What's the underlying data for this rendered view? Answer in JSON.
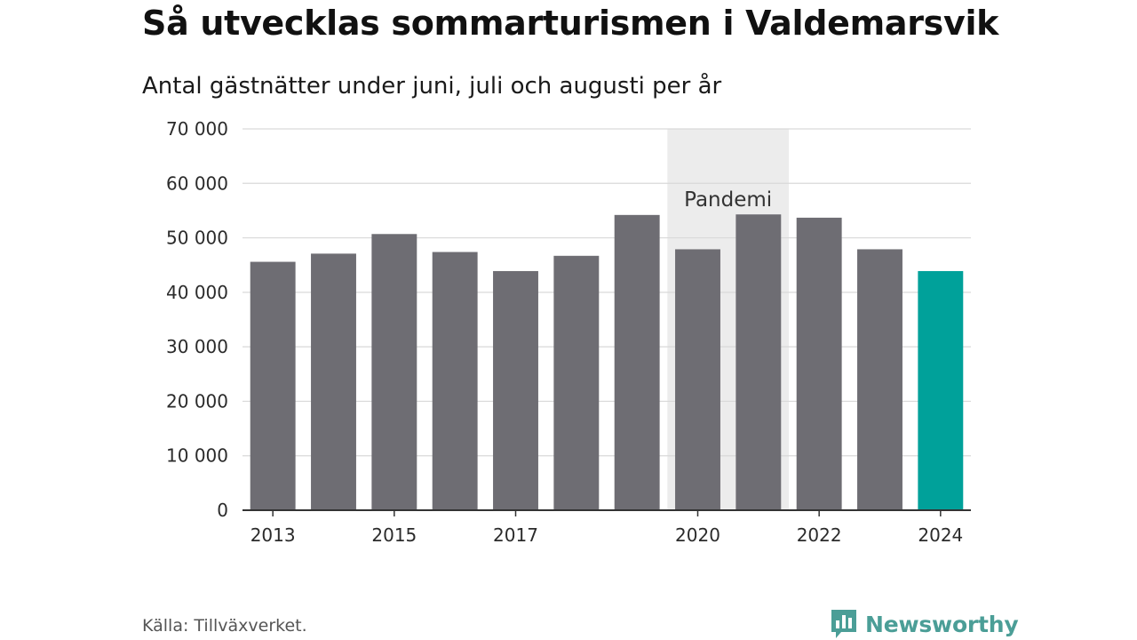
{
  "chart_data": {
    "type": "bar",
    "title": "Så utvecklas sommarturismen i Valdemarsvik",
    "subtitle": "Antal gästnätter under juni, juli och augusti per år",
    "categories": [
      "2013",
      "2014",
      "2015",
      "2016",
      "2017",
      "2018",
      "2019",
      "2020",
      "2021",
      "2022",
      "2023",
      "2024"
    ],
    "x_tick_labels": [
      "2013",
      "2015",
      "2017",
      "2020",
      "2022",
      "2024"
    ],
    "series": [
      {
        "values": [
          45600,
          47100,
          50700,
          47400,
          43900,
          46700,
          54200,
          47900,
          54300,
          53700,
          47900,
          43900
        ]
      }
    ],
    "highlight_category": "2024",
    "ylim": [
      0,
      70000
    ],
    "y_ticks": [
      0,
      10000,
      20000,
      30000,
      40000,
      50000,
      60000,
      70000
    ],
    "y_tick_labels": [
      "0",
      "10 000",
      "20 000",
      "30 000",
      "40 000",
      "50 000",
      "60 000",
      "70 000"
    ],
    "grid": true,
    "annotation": {
      "label": "Pandemi",
      "from": "2020",
      "to": "2021"
    },
    "xlabel": "",
    "ylabel": ""
  },
  "colors": {
    "bar": "#6e6d73",
    "highlight": "#00a19a",
    "grid": "#d9d9d9",
    "band": "#ececec",
    "axis": "#333333",
    "brand": "#4b9e97"
  },
  "footer": {
    "source": "Källa: Tillväxverket.",
    "brand_name": "Newsworthy",
    "brand_icon": "bar-chart-speech-bubble-icon"
  }
}
